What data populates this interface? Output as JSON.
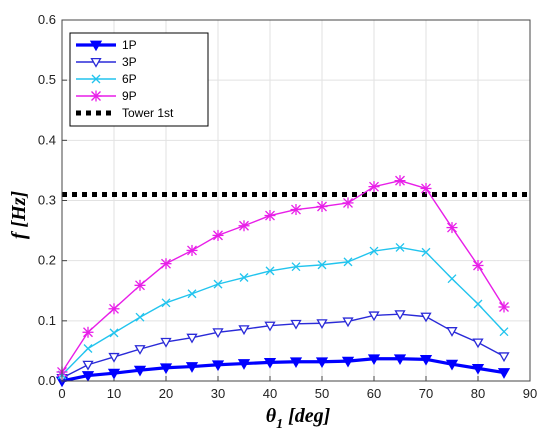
{
  "chart_data": {
    "type": "line",
    "xlabel": "θ",
    "xlabel_sub": "1",
    "xlabel_unit": " [deg]",
    "ylabel": "f [Hz]",
    "xlim": [
      0,
      90
    ],
    "ylim": [
      0,
      0.6
    ],
    "xticks": [
      "0",
      "10",
      "20",
      "30",
      "40",
      "50",
      "60",
      "70",
      "80",
      "90"
    ],
    "yticks": [
      "0.0",
      "0.1",
      "0.2",
      "0.3",
      "0.4",
      "0.5",
      "0.6"
    ],
    "grid": true,
    "legend_position": "top-left",
    "x": [
      0,
      5,
      10,
      15,
      20,
      25,
      30,
      35,
      40,
      45,
      50,
      55,
      60,
      65,
      70,
      75,
      80,
      85
    ],
    "series": [
      {
        "name": "1P",
        "color": "#0000ff",
        "marker": "filled-triangle-down",
        "values": [
          0.0,
          0.009,
          0.013,
          0.018,
          0.022,
          0.024,
          0.027,
          0.029,
          0.031,
          0.032,
          0.032,
          0.033,
          0.037,
          0.037,
          0.036,
          0.028,
          0.021,
          0.014
        ]
      },
      {
        "name": "3P",
        "color": "#2a2ad8",
        "marker": "triangle-down",
        "values": [
          0.005,
          0.027,
          0.04,
          0.053,
          0.065,
          0.072,
          0.081,
          0.086,
          0.092,
          0.095,
          0.096,
          0.099,
          0.109,
          0.111,
          0.107,
          0.083,
          0.064,
          0.041
        ]
      },
      {
        "name": "6P",
        "color": "#22c4ee",
        "marker": "x",
        "values": [
          0.01,
          0.054,
          0.08,
          0.106,
          0.13,
          0.145,
          0.161,
          0.172,
          0.183,
          0.19,
          0.193,
          0.198,
          0.216,
          0.222,
          0.214,
          0.17,
          0.128,
          0.082
        ]
      },
      {
        "name": "9P",
        "color": "#e81ee8",
        "marker": "asterisk",
        "values": [
          0.015,
          0.081,
          0.12,
          0.159,
          0.195,
          0.217,
          0.242,
          0.258,
          0.275,
          0.285,
          0.29,
          0.296,
          0.323,
          0.333,
          0.32,
          0.255,
          0.192,
          0.123
        ]
      }
    ],
    "reference_lines": [
      {
        "name": "Tower 1st",
        "y": 0.31,
        "color": "#000000",
        "style": "dotted"
      }
    ]
  }
}
